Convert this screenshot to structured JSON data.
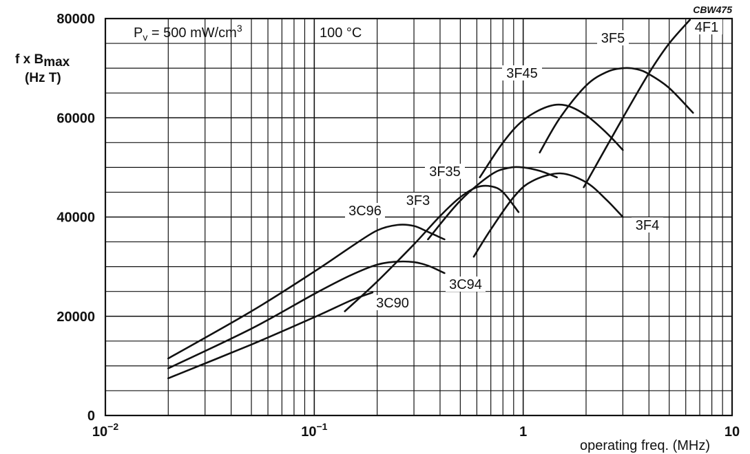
{
  "chart_data": {
    "type": "line",
    "figure_code": "CBW475",
    "ylabel_main": "f x B",
    "ylabel_sub": "max",
    "ylabel_unit": "(Hz T)",
    "xlabel": "operating freq. (MHz)",
    "conditions": {
      "pv": "P",
      "pv_sub": "v",
      "pv_value": " = 500 mW/cm",
      "pv_exp": "3",
      "temperature": "100 °C"
    },
    "x_scale": "log",
    "xlim": [
      0.01,
      10
    ],
    "ylim": [
      0,
      80000
    ],
    "y_ticks": [
      "0",
      "20000",
      "40000",
      "60000",
      "80000"
    ],
    "x_ticks": [
      {
        "base": "10",
        "exp": "−2"
      },
      {
        "base": "10",
        "exp": "−1"
      },
      {
        "base": "1",
        "exp": ""
      },
      {
        "base": "10",
        "exp": ""
      }
    ],
    "grid": true,
    "series": [
      {
        "name": "3C96",
        "x": [
          0.02,
          0.05,
          0.1,
          0.15,
          0.2,
          0.25,
          0.3,
          0.35,
          0.42
        ],
        "y": [
          11500,
          21000,
          29000,
          34000,
          37300,
          38400,
          38200,
          37000,
          35500
        ]
      },
      {
        "name": "3C94",
        "x": [
          0.02,
          0.05,
          0.1,
          0.15,
          0.2,
          0.25,
          0.3,
          0.35,
          0.42
        ],
        "y": [
          9500,
          17500,
          24500,
          28300,
          30400,
          31000,
          30900,
          30200,
          28700
        ]
      },
      {
        "name": "3C90",
        "x": [
          0.02,
          0.05,
          0.1,
          0.15,
          0.19
        ],
        "y": [
          7500,
          14300,
          19800,
          23200,
          24800
        ]
      },
      {
        "name": "3F3",
        "x": [
          0.14,
          0.2,
          0.3,
          0.4,
          0.5,
          0.6,
          0.7,
          0.8,
          0.95
        ],
        "y": [
          21000,
          27000,
          34500,
          40200,
          44000,
          46000,
          46200,
          45000,
          41000
        ]
      },
      {
        "name": "3F35",
        "x": [
          0.35,
          0.5,
          0.7,
          0.85,
          1.0,
          1.2,
          1.45
        ],
        "y": [
          35500,
          43300,
          48500,
          49900,
          50000,
          49300,
          48000
        ]
      },
      {
        "name": "3F4",
        "x": [
          0.58,
          0.7,
          0.9,
          1.1,
          1.5,
          2.0,
          2.5,
          3.0
        ],
        "y": [
          32000,
          37500,
          44000,
          47200,
          48800,
          47000,
          43500,
          40000
        ]
      },
      {
        "name": "3F45",
        "x": [
          0.62,
          0.8,
          1.0,
          1.3,
          1.6,
          2.0,
          2.5,
          3.0
        ],
        "y": [
          48000,
          55000,
          59500,
          62200,
          62500,
          60500,
          57000,
          53500
        ]
      },
      {
        "name": "3F5",
        "x": [
          1.2,
          1.5,
          2.0,
          2.5,
          3.0,
          3.5,
          4.0,
          5.0,
          6.5
        ],
        "y": [
          53000,
          60000,
          66500,
          69200,
          70000,
          69800,
          68800,
          66000,
          61000
        ]
      },
      {
        "name": "4F1",
        "x": [
          1.95,
          3.0,
          4.0,
          5.0,
          6.3
        ],
        "y": [
          46000,
          60000,
          69000,
          75000,
          79800
        ]
      }
    ]
  }
}
